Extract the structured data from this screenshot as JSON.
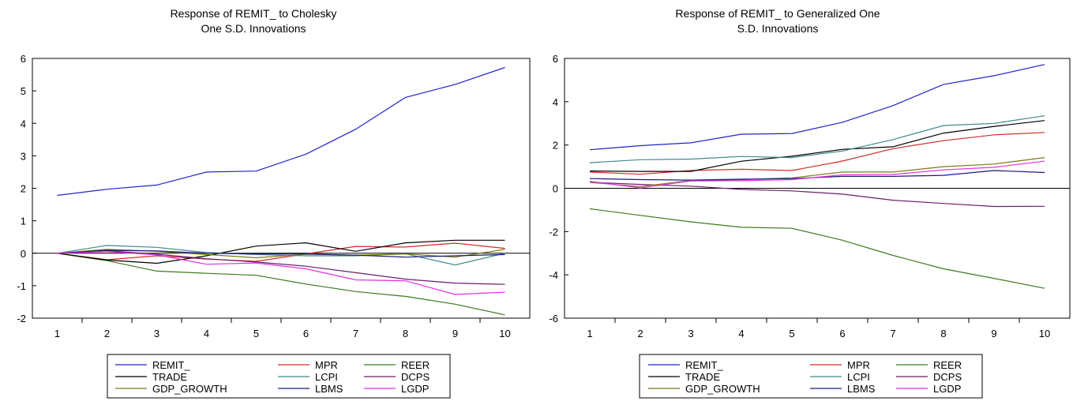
{
  "chart_data": [
    {
      "type": "line",
      "title_lines": [
        "Response of REMIT_ to Cholesky",
        "One S.D. Innovations"
      ],
      "x": [
        1,
        2,
        3,
        4,
        5,
        6,
        7,
        8,
        9,
        10
      ],
      "xlim": [
        0.5,
        10.5
      ],
      "ylim": [
        -2,
        6
      ],
      "yticks": [
        -2,
        -1,
        0,
        1,
        2,
        3,
        4,
        5,
        6
      ],
      "zero_line": true,
      "legend_position": "bottom",
      "series": [
        {
          "name": "REMIT_",
          "color": "#2323c8",
          "values": [
            1.78,
            1.97,
            2.1,
            2.5,
            2.53,
            3.05,
            3.82,
            4.8,
            5.2,
            5.72
          ]
        },
        {
          "name": "MPR",
          "color": "#d42a2a",
          "values": [
            0.0,
            -0.2,
            -0.08,
            -0.18,
            -0.25,
            -0.02,
            0.21,
            0.19,
            0.31,
            0.15
          ]
        },
        {
          "name": "REER",
          "color": "#3c7a1e",
          "values": [
            0.0,
            -0.23,
            -0.55,
            -0.62,
            -0.68,
            -0.95,
            -1.18,
            -1.33,
            -1.57,
            -1.9
          ]
        },
        {
          "name": "TRADE",
          "color": "#000000",
          "values": [
            0.0,
            -0.21,
            -0.31,
            -0.08,
            0.22,
            0.32,
            0.06,
            0.32,
            0.4,
            0.4
          ]
        },
        {
          "name": "LCPI",
          "color": "#3d8a86",
          "values": [
            0.0,
            0.24,
            0.18,
            0.02,
            -0.04,
            -0.08,
            -0.08,
            -0.02,
            -0.36,
            0.0
          ]
        },
        {
          "name": "DCPS",
          "color": "#6a1f6a",
          "values": [
            0.0,
            0.08,
            -0.03,
            -0.17,
            -0.27,
            -0.4,
            -0.6,
            -0.8,
            -0.92,
            -0.96
          ]
        },
        {
          "name": "GDP_GROWTH",
          "color": "#7b7b14",
          "values": [
            0.0,
            0.12,
            0.06,
            -0.04,
            -0.14,
            -0.03,
            -0.06,
            -0.02,
            -0.12,
            0.12
          ]
        },
        {
          "name": "LBMS",
          "color": "#1a1a7a",
          "values": [
            0.0,
            0.09,
            0.07,
            0.0,
            -0.02,
            -0.02,
            -0.06,
            -0.12,
            -0.08,
            -0.04
          ]
        },
        {
          "name": "LGDP",
          "color": "#e12fe1",
          "values": [
            0.0,
            0.05,
            -0.05,
            -0.34,
            -0.3,
            -0.48,
            -0.82,
            -0.85,
            -1.27,
            -1.2
          ]
        }
      ]
    },
    {
      "type": "line",
      "title_lines": [
        "Response of REMIT_ to Generalized One",
        "S.D. Innovations"
      ],
      "x": [
        1,
        2,
        3,
        4,
        5,
        6,
        7,
        8,
        9,
        10
      ],
      "xlim": [
        0.5,
        10.5
      ],
      "ylim": [
        -6,
        6
      ],
      "yticks": [
        -6,
        -4,
        -2,
        0,
        2,
        4,
        6
      ],
      "zero_line": true,
      "legend_position": "bottom",
      "series": [
        {
          "name": "REMIT_",
          "color": "#2323c8",
          "values": [
            1.78,
            1.97,
            2.1,
            2.5,
            2.53,
            3.05,
            3.82,
            4.8,
            5.2,
            5.72
          ]
        },
        {
          "name": "MPR",
          "color": "#d42a2a",
          "values": [
            0.75,
            0.65,
            0.82,
            0.88,
            0.82,
            1.26,
            1.83,
            2.2,
            2.47,
            2.58
          ]
        },
        {
          "name": "REER",
          "color": "#3c7a1e",
          "values": [
            -0.95,
            -1.25,
            -1.55,
            -1.8,
            -1.85,
            -2.4,
            -3.1,
            -3.72,
            -4.16,
            -4.62
          ]
        },
        {
          "name": "TRADE",
          "color": "#000000",
          "values": [
            0.8,
            0.78,
            0.78,
            1.25,
            1.48,
            1.8,
            1.92,
            2.55,
            2.86,
            3.13
          ]
        },
        {
          "name": "LCPI",
          "color": "#3d8a86",
          "values": [
            1.18,
            1.32,
            1.35,
            1.47,
            1.42,
            1.72,
            2.25,
            2.9,
            3.0,
            3.35
          ]
        },
        {
          "name": "DCPS",
          "color": "#6a1f6a",
          "values": [
            0.28,
            0.18,
            0.1,
            -0.05,
            -0.12,
            -0.27,
            -0.55,
            -0.7,
            -0.84,
            -0.83
          ]
        },
        {
          "name": "GDP_GROWTH",
          "color": "#7b7b14",
          "values": [
            0.27,
            0.08,
            0.36,
            0.4,
            0.48,
            0.75,
            0.75,
            1.0,
            1.12,
            1.42
          ]
        },
        {
          "name": "LBMS",
          "color": "#1a1a7a",
          "values": [
            0.45,
            0.4,
            0.38,
            0.42,
            0.45,
            0.55,
            0.55,
            0.6,
            0.82,
            0.73
          ]
        },
        {
          "name": "LGDP",
          "color": "#e12fe1",
          "values": [
            0.32,
            0.02,
            0.34,
            0.35,
            0.4,
            0.62,
            0.64,
            0.85,
            0.97,
            1.25
          ]
        }
      ]
    }
  ]
}
